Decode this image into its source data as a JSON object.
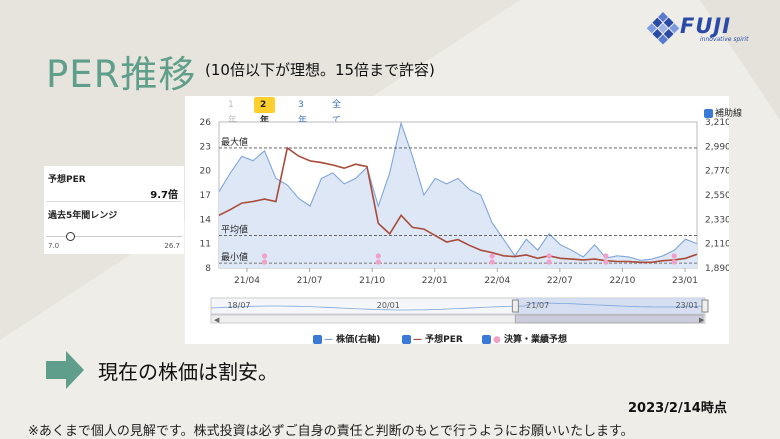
{
  "logo": {
    "name": "FUJI",
    "tagline": "innovative spirit"
  },
  "page": {
    "title": "PER推移",
    "subtitle": "(10倍以下が理想。15倍まで許容)",
    "verdict": "現在の株価は割安。",
    "date": "2023/2/14時点",
    "note": "※あくまで個人の見解です。株式投資は必ずご自身の責任と判断のもとで行うようにお願いいたします。"
  },
  "side_panel": {
    "per_label": "予想PER",
    "per_value": "9.7倍",
    "range_label": "過去5年間レンジ",
    "range_min": "7.0",
    "range_max": "26.7",
    "range_position": 0.14
  },
  "tabs": [
    {
      "label": "1年",
      "state": "disabled"
    },
    {
      "label": "2年",
      "state": "active"
    },
    {
      "label": "3年",
      "state": "link"
    },
    {
      "label": "全て",
      "state": "link"
    }
  ],
  "aux_checkbox": {
    "label": "補助線",
    "checked": true
  },
  "chart_data": {
    "type": "line",
    "y_left_ticks": [
      "26",
      "23",
      "20",
      "17",
      "14",
      "11",
      "8"
    ],
    "y_right_ticks": [
      "3,210",
      "2,990",
      "2,770",
      "2,550",
      "2,330",
      "2,110",
      "1,890"
    ],
    "x_ticks": [
      "21/04",
      "21/07",
      "21/10",
      "22/01",
      "22/04",
      "22/07",
      "22/10",
      "23/01"
    ],
    "navigator_ticks": [
      "18/07",
      "20/01",
      "21/07",
      "23/01"
    ],
    "ref_lines": [
      {
        "label": "最大値",
        "value": 22.8
      },
      {
        "label": "平均値",
        "value": 12.0
      },
      {
        "label": "最小値",
        "value": 8.6
      }
    ],
    "series": [
      {
        "name": "株価(右軸)",
        "color": "#7fa6dc",
        "values": [
          2580,
          2750,
          2900,
          2860,
          2950,
          2700,
          2640,
          2520,
          2450,
          2700,
          2750,
          2650,
          2700,
          2800,
          2450,
          2750,
          3200,
          2900,
          2550,
          2700,
          2650,
          2700,
          2600,
          2550,
          2300,
          2150,
          2000,
          2150,
          2050,
          2200,
          2100,
          2050,
          1990,
          2100,
          1980,
          2000,
          1990,
          1960,
          1970,
          2000,
          2050,
          2150,
          2110
        ]
      },
      {
        "name": "予想PER",
        "color": "#a94a3a",
        "values": [
          14.5,
          15.2,
          16.0,
          16.2,
          16.5,
          16.2,
          22.8,
          21.8,
          21.2,
          21.0,
          20.7,
          20.3,
          20.8,
          20.5,
          13.5,
          12.2,
          14.5,
          13.0,
          12.8,
          12.0,
          11.2,
          11.5,
          10.8,
          10.2,
          9.9,
          9.5,
          9.4,
          9.6,
          9.2,
          9.5,
          9.2,
          9.1,
          9.0,
          9.1,
          8.9,
          8.8,
          8.8,
          8.7,
          8.7,
          8.9,
          9.0,
          9.2,
          9.7
        ]
      }
    ],
    "earnings_markers": {
      "name": "決算・業績予想",
      "color": "#f3a0c8",
      "x_index": [
        4,
        14,
        24,
        29,
        34,
        40
      ]
    },
    "ylim_left": [
      8,
      26
    ],
    "ylim_right": [
      1890,
      3210
    ]
  },
  "legend": [
    {
      "label": "株価(右軸)"
    },
    {
      "label": "予想PER"
    },
    {
      "label": "決算・業績予想"
    }
  ]
}
